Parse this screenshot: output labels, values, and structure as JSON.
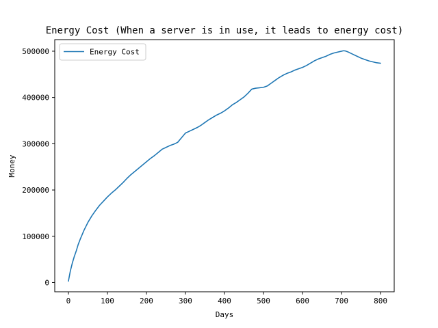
{
  "chart_data": {
    "type": "line",
    "title": "Energy Cost (When a server is in use, it leads to energy cost)",
    "xlabel": "Days",
    "ylabel": "Money",
    "xlim": [
      -35,
      835
    ],
    "ylim": [
      -20000,
      525000
    ],
    "xticks": [
      0,
      100,
      200,
      300,
      400,
      500,
      600,
      700,
      800
    ],
    "yticks": [
      0,
      100000,
      200000,
      300000,
      400000,
      500000
    ],
    "grid": false,
    "legend_position": "upper-left",
    "series": [
      {
        "name": "Energy Cost",
        "color": "#1f77b4",
        "x": [
          0,
          5,
          10,
          15,
          20,
          25,
          30,
          35,
          40,
          50,
          60,
          70,
          80,
          90,
          100,
          110,
          120,
          130,
          140,
          150,
          160,
          170,
          180,
          190,
          200,
          210,
          220,
          230,
          240,
          250,
          260,
          270,
          280,
          290,
          300,
          310,
          320,
          330,
          340,
          350,
          360,
          370,
          380,
          390,
          400,
          410,
          420,
          430,
          440,
          450,
          460,
          470,
          480,
          490,
          500,
          510,
          520,
          530,
          540,
          550,
          560,
          570,
          580,
          590,
          600,
          610,
          620,
          630,
          640,
          650,
          660,
          670,
          680,
          690,
          700,
          705,
          710,
          715,
          720,
          730,
          740,
          750,
          760,
          770,
          780,
          790,
          800
        ],
        "y": [
          3000,
          25000,
          42000,
          56000,
          68000,
          82000,
          93000,
          103000,
          113000,
          130000,
          144000,
          156000,
          167000,
          176000,
          185000,
          193000,
          200000,
          208000,
          216000,
          225000,
          233000,
          240000,
          247000,
          254000,
          261000,
          268000,
          274000,
          281000,
          288000,
          292000,
          296000,
          299000,
          303000,
          313000,
          323000,
          327000,
          331000,
          335000,
          340000,
          346000,
          352000,
          357000,
          362000,
          366000,
          371000,
          377000,
          384000,
          389000,
          395000,
          401000,
          409000,
          418000,
          420000,
          421000,
          422000,
          425000,
          431000,
          437000,
          443000,
          448000,
          452000,
          455000,
          459000,
          462000,
          465000,
          469000,
          474000,
          479000,
          483000,
          486000,
          489000,
          493000,
          496000,
          498000,
          500000,
          501000,
          500500,
          499000,
          497000,
          493000,
          489000,
          485000,
          482000,
          479000,
          477000,
          475000,
          474000
        ]
      }
    ]
  }
}
